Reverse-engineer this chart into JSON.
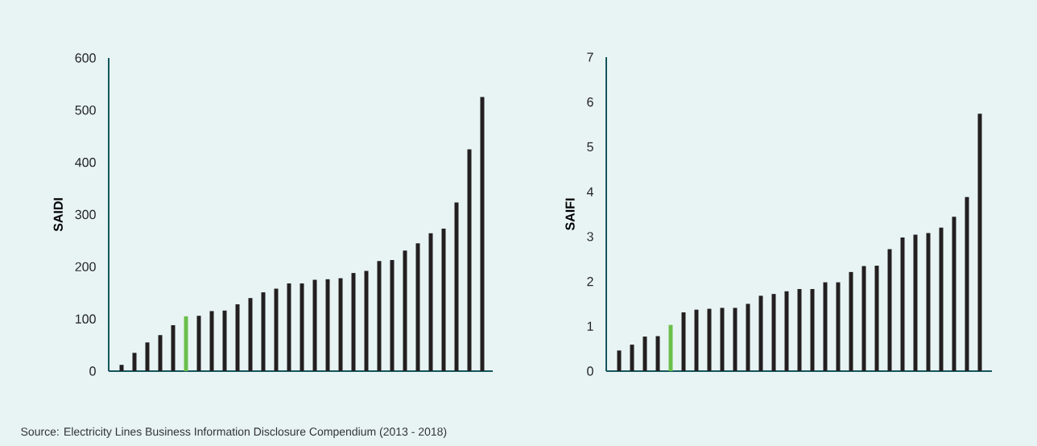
{
  "chart_data": [
    {
      "type": "bar",
      "ylabel": "SAIDI",
      "categories": [
        null,
        null,
        null,
        null,
        null,
        null,
        null,
        null,
        null,
        null,
        null,
        null,
        null,
        null,
        null,
        null,
        null,
        null,
        null,
        null,
        null,
        null,
        null,
        null,
        null,
        null,
        null,
        null,
        null
      ],
      "values": [
        12,
        35,
        55,
        69,
        88,
        105,
        106,
        115,
        116,
        128,
        140,
        151,
        158,
        168,
        168,
        175,
        176,
        178,
        188,
        192,
        211,
        213,
        231,
        245,
        264,
        273,
        323,
        425,
        525
      ],
      "colors": [
        "#231f20",
        "#231f20",
        "#231f20",
        "#231f20",
        "#231f20",
        "#6abf4b",
        "#231f20",
        "#231f20",
        "#231f20",
        "#231f20",
        "#231f20",
        "#231f20",
        "#231f20",
        "#231f20",
        "#231f20",
        "#231f20",
        "#231f20",
        "#231f20",
        "#231f20",
        "#231f20",
        "#231f20",
        "#231f20",
        "#231f20",
        "#231f20",
        "#231f20",
        "#231f20",
        "#231f20",
        "#231f20",
        "#231f20"
      ],
      "ylim": [
        0,
        600
      ],
      "yticks": [
        0,
        100,
        200,
        300,
        400,
        500,
        600
      ],
      "annotations": [
        "Source: Electricity Lines Business Information Disclosure Compendium (2013 - 2018)"
      ]
    },
    {
      "type": "bar",
      "ylabel": "SAIFI",
      "categories": [
        null,
        null,
        null,
        null,
        null,
        null,
        null,
        null,
        null,
        null,
        null,
        null,
        null,
        null,
        null,
        null,
        null,
        null,
        null,
        null,
        null,
        null,
        null,
        null,
        null,
        null,
        null,
        null,
        null
      ],
      "values": [
        0.46,
        0.59,
        0.77,
        0.78,
        1.03,
        1.31,
        1.37,
        1.39,
        1.41,
        1.41,
        1.5,
        1.68,
        1.72,
        1.78,
        1.83,
        1.83,
        1.98,
        1.98,
        2.21,
        2.34,
        2.35,
        2.72,
        2.98,
        3.04,
        3.08,
        3.2,
        3.44,
        3.88,
        5.74
      ],
      "colors": [
        "#231f20",
        "#231f20",
        "#231f20",
        "#231f20",
        "#6abf4b",
        "#231f20",
        "#231f20",
        "#231f20",
        "#231f20",
        "#231f20",
        "#231f20",
        "#231f20",
        "#231f20",
        "#231f20",
        "#231f20",
        "#231f20",
        "#231f20",
        "#231f20",
        "#231f20",
        "#231f20",
        "#231f20",
        "#231f20",
        "#231f20",
        "#231f20",
        "#231f20",
        "#231f20",
        "#231f20",
        "#231f20",
        "#231f20"
      ],
      "ylim": [
        0,
        7
      ],
      "yticks": [
        0,
        1,
        2,
        3,
        4,
        5,
        6,
        7
      ]
    }
  ]
}
